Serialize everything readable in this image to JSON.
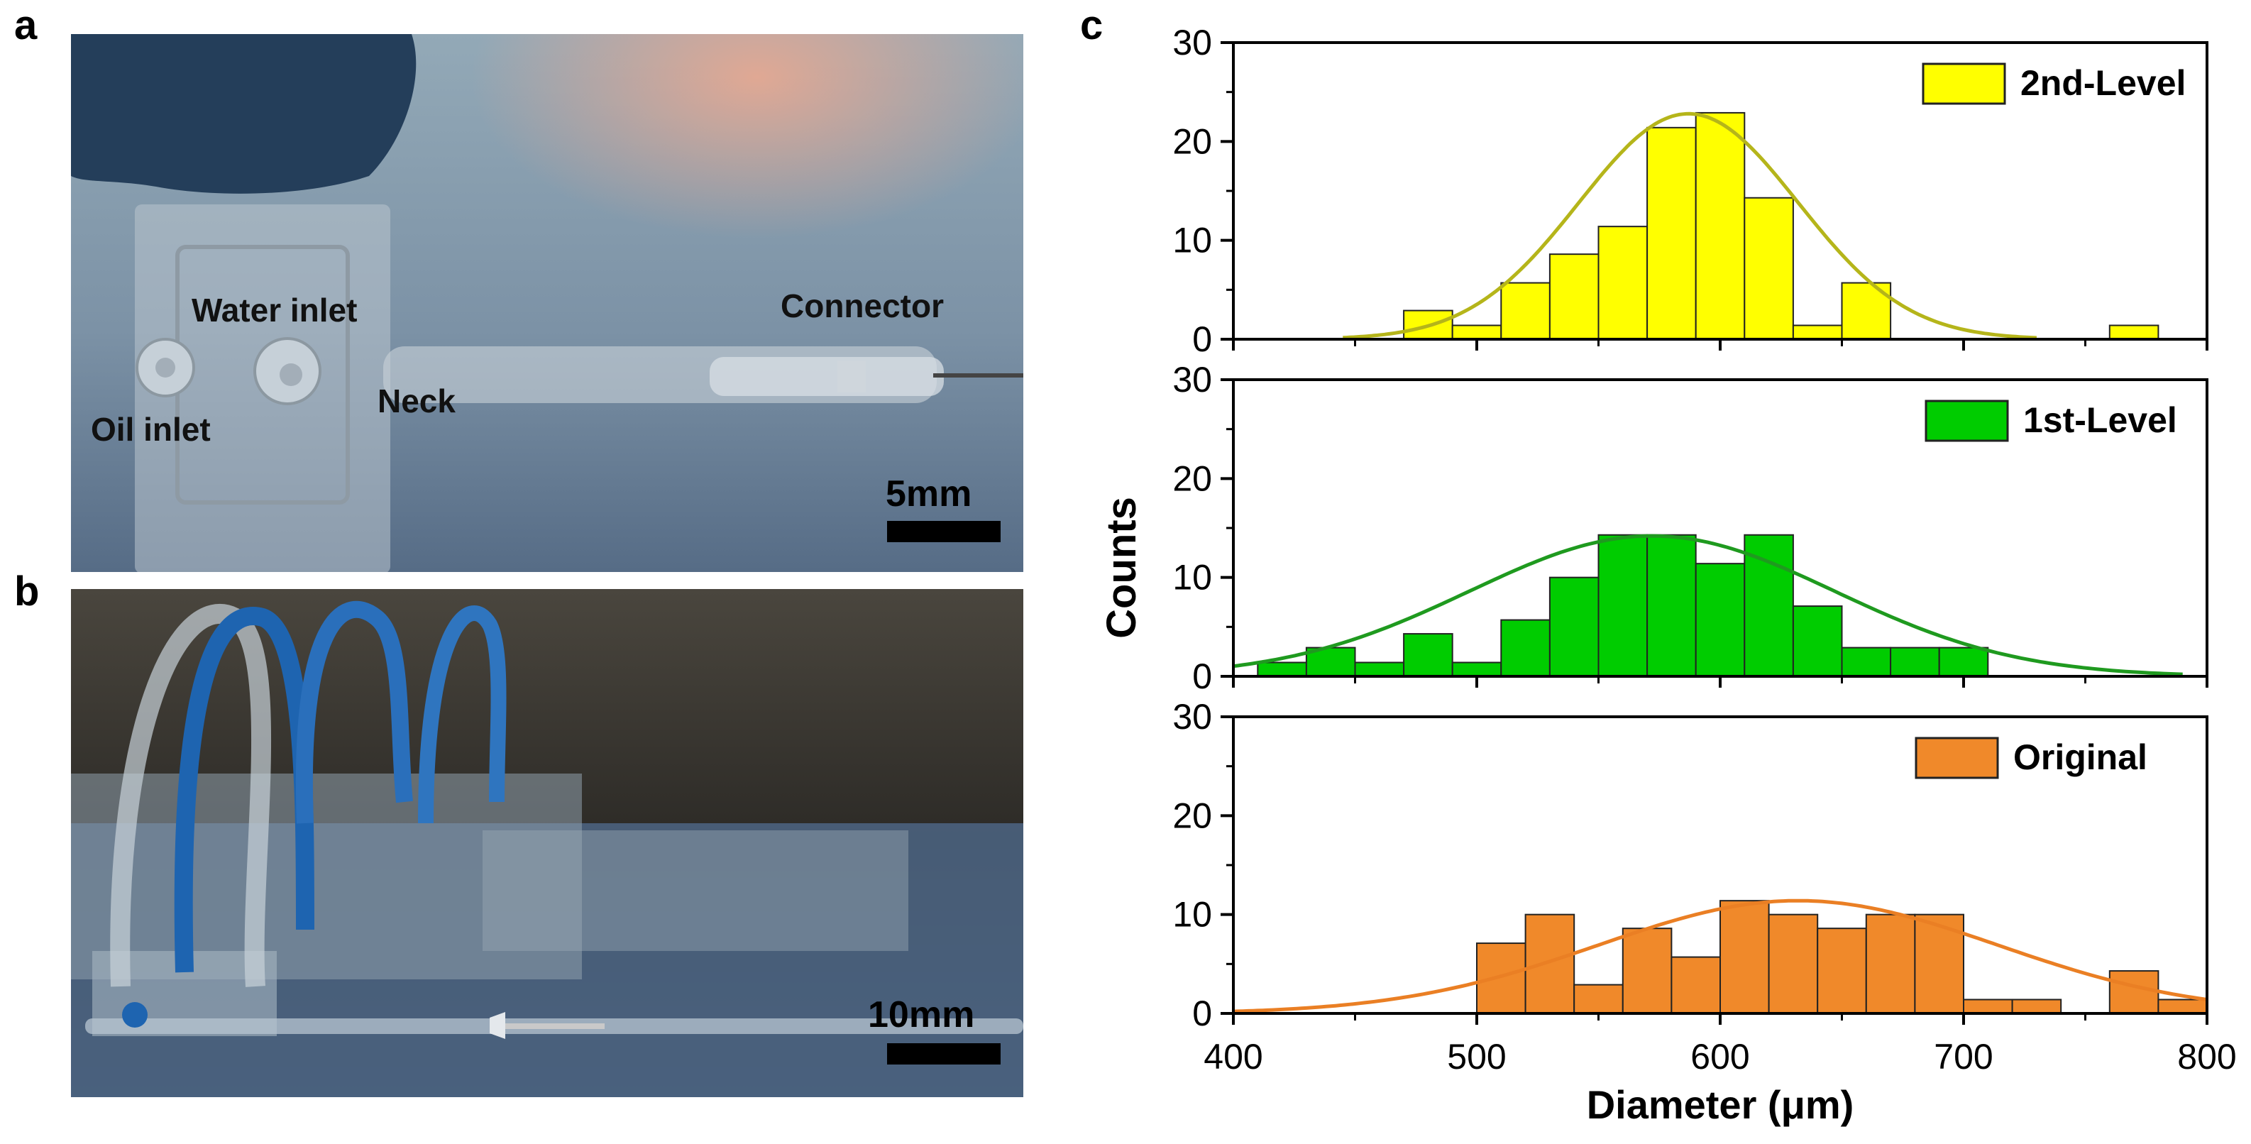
{
  "panels": {
    "a": {
      "letter": "a",
      "labels": {
        "water_inlet": "Water inlet",
        "connector": "Connector",
        "oil_inlet": "Oil inlet",
        "neck": "Neck"
      },
      "scale": "5mm"
    },
    "b": {
      "letter": "b",
      "scale": "10mm"
    },
    "c": {
      "letter": "c"
    }
  },
  "chart_data": {
    "type": "bar",
    "ylabel": "Counts",
    "xlabel": "Diameter (μm)",
    "xlim": [
      400,
      800
    ],
    "ylim": [
      0,
      30
    ],
    "x_ticks": [
      "400",
      "500",
      "600",
      "700",
      "800"
    ],
    "y_ticks": [
      "0",
      "10",
      "20",
      "30"
    ],
    "bin_width": 20,
    "subplots": [
      {
        "name": "2nd-Level",
        "color": "#ffff00",
        "fit_color": "#b5b51a",
        "bins": [
          {
            "x0": 470,
            "count": 2.9
          },
          {
            "x0": 490,
            "count": 1.4
          },
          {
            "x0": 510,
            "count": 5.7
          },
          {
            "x0": 530,
            "count": 8.6
          },
          {
            "x0": 550,
            "count": 11.4
          },
          {
            "x0": 570,
            "count": 21.4
          },
          {
            "x0": 590,
            "count": 22.9
          },
          {
            "x0": 610,
            "count": 14.3
          },
          {
            "x0": 630,
            "count": 1.4
          },
          {
            "x0": 650,
            "count": 5.7
          },
          {
            "x0": 760,
            "count": 1.4
          }
        ],
        "fit": {
          "mean": 587,
          "sd": 45,
          "peak": 22.8,
          "x_start": 445,
          "x_end": 730
        }
      },
      {
        "name": "1st-Level",
        "color": "#00cc00",
        "fit_color": "#1f9a1f",
        "bins": [
          {
            "x0": 410,
            "count": 1.4
          },
          {
            "x0": 430,
            "count": 2.9
          },
          {
            "x0": 450,
            "count": 1.4
          },
          {
            "x0": 470,
            "count": 4.3
          },
          {
            "x0": 490,
            "count": 1.4
          },
          {
            "x0": 510,
            "count": 5.7
          },
          {
            "x0": 530,
            "count": 10.0
          },
          {
            "x0": 550,
            "count": 14.3
          },
          {
            "x0": 570,
            "count": 14.3
          },
          {
            "x0": 590,
            "count": 11.4
          },
          {
            "x0": 610,
            "count": 14.3
          },
          {
            "x0": 630,
            "count": 7.1
          },
          {
            "x0": 650,
            "count": 2.9
          },
          {
            "x0": 670,
            "count": 2.9
          },
          {
            "x0": 690,
            "count": 2.9
          }
        ],
        "fit": {
          "mean": 572,
          "sd": 75,
          "peak": 14.2,
          "x_start": 400,
          "x_end": 790
        }
      },
      {
        "name": "Original",
        "color": "#f0892a",
        "fit_color": "#ea7f24",
        "bins": [
          {
            "x0": 500,
            "count": 7.1
          },
          {
            "x0": 520,
            "count": 10.0
          },
          {
            "x0": 540,
            "count": 2.9
          },
          {
            "x0": 560,
            "count": 8.6
          },
          {
            "x0": 580,
            "count": 5.7
          },
          {
            "x0": 600,
            "count": 11.4
          },
          {
            "x0": 620,
            "count": 10.0
          },
          {
            "x0": 640,
            "count": 8.6
          },
          {
            "x0": 660,
            "count": 10.0
          },
          {
            "x0": 680,
            "count": 10.0
          },
          {
            "x0": 700,
            "count": 1.4
          },
          {
            "x0": 720,
            "count": 1.4
          },
          {
            "x0": 760,
            "count": 4.3
          },
          {
            "x0": 780,
            "count": 1.4
          }
        ],
        "fit": {
          "mean": 632,
          "sd": 82,
          "peak": 11.4,
          "x_start": 400,
          "x_end": 800
        }
      }
    ]
  }
}
